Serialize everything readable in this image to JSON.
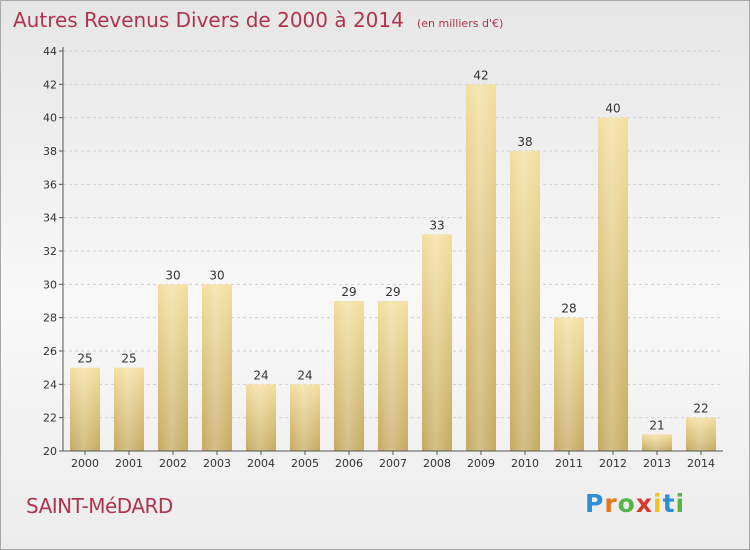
{
  "header": {
    "title": "Autres Revenus Divers de 2000 à 2014",
    "subtitle": "(en milliers d'€)"
  },
  "location": "SAINT-MéDARD",
  "brand": "Proxiti",
  "colors": {
    "title": "#b0344e",
    "bar_light": "#f3dc9a",
    "bar_dark": "#c8ad62",
    "gridline": "#cfcfcf",
    "axis": "#555555"
  },
  "chart_data": {
    "type": "bar",
    "title": "Autres Revenus Divers de 2000 à 2014",
    "subtitle": "(en milliers d'€)",
    "xlabel": "",
    "ylabel": "",
    "categories": [
      "2000",
      "2001",
      "2002",
      "2003",
      "2004",
      "2005",
      "2006",
      "2007",
      "2008",
      "2009",
      "2010",
      "2011",
      "2012",
      "2013",
      "2014"
    ],
    "values": [
      25,
      25,
      30,
      30,
      24,
      24,
      29,
      29,
      33,
      42,
      38,
      28,
      40,
      21,
      22
    ],
    "ylim": [
      20,
      44
    ],
    "yticks": [
      20,
      22,
      24,
      26,
      28,
      30,
      32,
      34,
      36,
      38,
      40,
      42,
      44
    ],
    "grid": true,
    "legend": "none"
  }
}
